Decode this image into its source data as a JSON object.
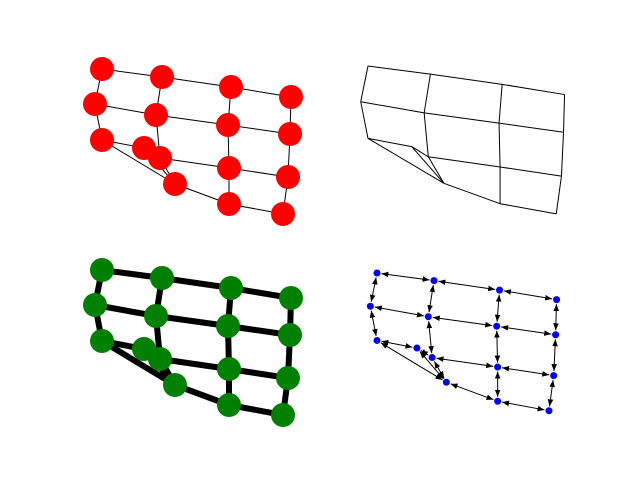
{
  "panels": [
    {
      "node_color": "#ff0000",
      "node_radius": 12,
      "edge_width": 1,
      "show_nodes": true,
      "arrows": false
    },
    {
      "node_color": "#ff0000",
      "node_radius": 0,
      "edge_width": 1,
      "show_nodes": false,
      "arrows": false
    },
    {
      "node_color": "#008000",
      "node_radius": 12,
      "edge_width": 6,
      "show_nodes": true,
      "arrows": false
    },
    {
      "node_color": "#0000ff",
      "node_radius": 3.5,
      "edge_width": 1,
      "show_nodes": true,
      "arrows": true
    }
  ]
}
